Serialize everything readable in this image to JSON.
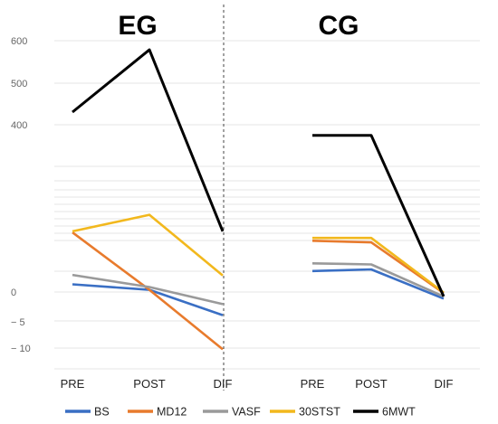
{
  "chart_data": {
    "type": "line",
    "legend_position": "bottom",
    "grid": true,
    "y_ticks": [
      "600",
      "500",
      "400",
      "0",
      "− 5",
      "− 10"
    ],
    "series": [
      {
        "name": "BS",
        "color": "#3a6fc4"
      },
      {
        "name": "MD12",
        "color": "#e87b2d"
      },
      {
        "name": "VASF",
        "color": "#9a9a9a"
      },
      {
        "name": "30STST",
        "color": "#f2b81d"
      },
      {
        "name": "6MWT",
        "color": "#000000"
      }
    ],
    "panels": [
      {
        "title": "EG",
        "categories": [
          "PRE",
          "POST",
          "DIF"
        ],
        "series_values": {
          "BS": [
            1.4,
            0.4,
            -4.2
          ],
          "MD12": [
            10.8,
            0.4,
            -10.4
          ],
          "VASF": [
            3.1,
            0.9,
            -2.2
          ],
          "30STST": [
            11.0,
            14.0,
            3.0
          ],
          "6MWT": [
            430,
            578,
            11.0
          ]
        }
      },
      {
        "title": "CG",
        "categories": [
          "PRE",
          "POST",
          "DIF"
        ],
        "series_values": {
          "BS": [
            3.8,
            4.1,
            -1.2
          ],
          "MD12": [
            9.3,
            9.0,
            -0.2
          ],
          "VASF": [
            5.2,
            5.0,
            -0.8
          ],
          "30STST": [
            9.8,
            9.8,
            -0.1
          ],
          "6MWT": [
            375,
            375,
            -0.8
          ]
        }
      }
    ]
  }
}
